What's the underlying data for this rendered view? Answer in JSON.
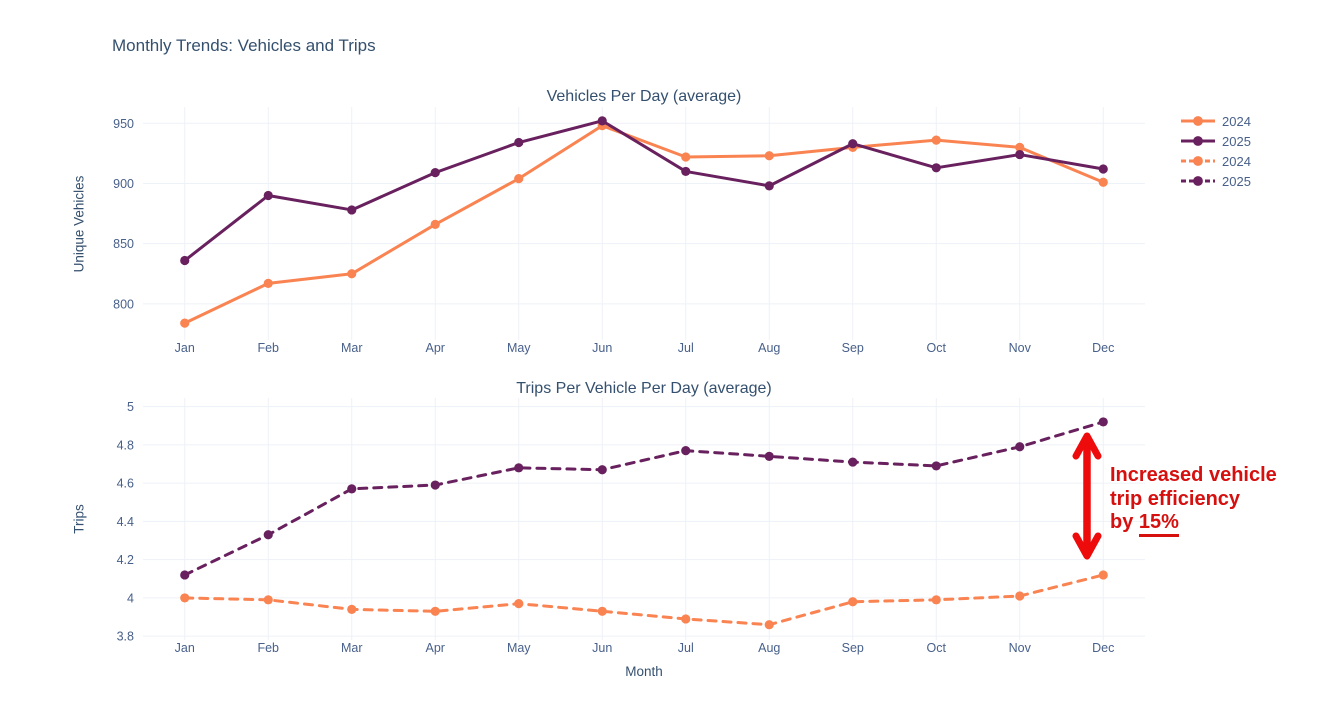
{
  "figure": {
    "title": "Monthly Trends: Vehicles and Trips"
  },
  "colors": {
    "orange": "#fa8352",
    "purple": "#68215e",
    "annotation_red": "#d60f0f",
    "arrow_red": "#ee0b0b",
    "title_text": "#34506e",
    "tick_text": "#48608a",
    "gridline": "#edf1f8",
    "background": "#ffffff"
  },
  "legend": {
    "items": [
      {
        "label": "2024",
        "color": "#fa8352",
        "dash": "solid"
      },
      {
        "label": "2025",
        "color": "#68215e",
        "dash": "solid"
      },
      {
        "label": "2024",
        "color": "#fa8352",
        "dash": "dash"
      },
      {
        "label": "2025",
        "color": "#68215e",
        "dash": "dash"
      }
    ]
  },
  "annotation": {
    "text": "Increased vehicle trip efficiency by 15%",
    "lines": [
      "Increased vehicle",
      "trip efficiency",
      "by "
    ],
    "underlined": "15%"
  },
  "chart_data": [
    {
      "type": "line",
      "title": "Vehicles Per Day (average)",
      "xlabel": "",
      "ylabel": "Unique Vehicles",
      "categories": [
        "Jan",
        "Feb",
        "Mar",
        "Apr",
        "May",
        "Jun",
        "Jul",
        "Aug",
        "Sep",
        "Oct",
        "Nov",
        "Dec"
      ],
      "yticks": [
        800,
        850,
        900,
        950
      ],
      "ylim": [
        770,
        963.5
      ],
      "grid": true,
      "legend_position": "right",
      "series": [
        {
          "name": "2024",
          "color": "#fa8352",
          "dash": "solid",
          "values": [
            784,
            817,
            825,
            866,
            904,
            948,
            922,
            923,
            930,
            936,
            930,
            901
          ]
        },
        {
          "name": "2025",
          "color": "#68215e",
          "dash": "solid",
          "values": [
            836,
            890,
            878,
            909,
            934,
            952,
            910,
            898,
            933,
            913,
            924,
            912
          ]
        }
      ]
    },
    {
      "type": "line",
      "title": "Trips Per Vehicle Per Day (average)",
      "xlabel": "Month",
      "ylabel": "Trips",
      "categories": [
        "Jan",
        "Feb",
        "Mar",
        "Apr",
        "May",
        "Jun",
        "Jul",
        "Aug",
        "Sep",
        "Oct",
        "Nov",
        "Dec"
      ],
      "yticks": [
        3.8,
        4,
        4.2,
        4.4,
        4.6,
        4.8,
        5
      ],
      "ylim": [
        3.78,
        5.045
      ],
      "grid": true,
      "series": [
        {
          "name": "2024",
          "color": "#fa8352",
          "dash": "dash",
          "values": [
            4.0,
            3.99,
            3.94,
            3.93,
            3.97,
            3.93,
            3.89,
            3.86,
            3.98,
            3.99,
            4.01,
            4.12
          ]
        },
        {
          "name": "2025",
          "color": "#68215e",
          "dash": "dash",
          "values": [
            4.12,
            4.33,
            4.57,
            4.59,
            4.68,
            4.67,
            4.77,
            4.74,
            4.71,
            4.69,
            4.79,
            4.92
          ]
        }
      ]
    }
  ]
}
